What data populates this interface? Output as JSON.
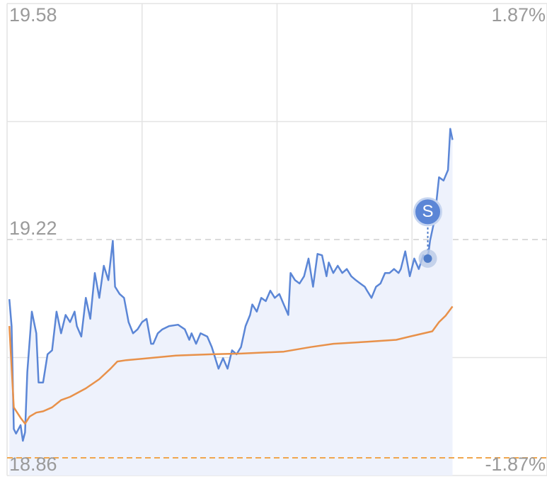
{
  "chart_data": {
    "type": "line",
    "xlim": [
      0,
      240
    ],
    "xticks": [
      0,
      60,
      120,
      180,
      240
    ],
    "ylim": [
      18.86,
      19.58
    ],
    "yticks": [
      18.86,
      19.22,
      19.58
    ],
    "y2lim": [
      -1.87,
      1.87
    ],
    "y2ticks": [
      {
        "value": -1.87,
        "label": "-1.87%"
      },
      {
        "value": 1.87,
        "label": "1.87%"
      }
    ],
    "grid": true,
    "prev_close": 19.22,
    "reference_lines": [
      {
        "value": 18.887,
        "color": "#f0a64e"
      }
    ],
    "series": [
      {
        "name": "price",
        "color": "#5b86d6",
        "fill": "#eef2fc",
        "x": [
          1,
          2,
          3,
          4,
          6,
          7,
          8,
          9,
          11,
          13,
          14,
          16,
          18,
          20,
          22,
          24,
          26,
          28,
          30,
          31,
          33,
          35,
          37,
          39,
          41,
          43,
          45,
          47,
          48,
          50,
          52,
          54,
          56,
          58,
          60,
          62,
          64,
          65,
          67,
          69,
          72,
          76,
          79,
          81,
          82,
          84,
          86,
          89,
          91,
          92,
          94,
          96,
          98,
          100,
          102,
          104,
          106,
          108,
          109,
          111,
          113,
          115,
          117,
          119,
          121,
          123,
          125,
          126,
          128,
          130,
          132,
          134,
          136,
          138,
          140,
          142,
          143,
          145,
          147,
          149,
          151,
          153,
          155,
          157,
          159,
          160,
          162,
          164,
          166,
          168,
          170,
          172,
          174,
          175,
          177,
          179,
          181,
          183,
          185,
          187,
          188,
          190,
          192,
          194,
          196,
          197,
          198
        ],
        "values": [
          19.129,
          19.088,
          18.931,
          18.924,
          18.937,
          18.913,
          18.926,
          19.018,
          19.11,
          19.077,
          19.002,
          19.002,
          19.045,
          19.051,
          19.11,
          19.077,
          19.105,
          19.094,
          19.11,
          19.088,
          19.072,
          19.131,
          19.099,
          19.169,
          19.131,
          19.18,
          19.158,
          19.218,
          19.148,
          19.137,
          19.131,
          19.094,
          19.077,
          19.083,
          19.094,
          19.099,
          19.061,
          19.061,
          19.077,
          19.083,
          19.088,
          19.09,
          19.083,
          19.067,
          19.077,
          19.061,
          19.077,
          19.072,
          19.056,
          19.045,
          19.023,
          19.039,
          19.023,
          19.051,
          19.045,
          19.056,
          19.088,
          19.105,
          19.121,
          19.11,
          19.131,
          19.126,
          19.142,
          19.131,
          19.137,
          19.121,
          19.105,
          19.169,
          19.158,
          19.153,
          19.164,
          19.191,
          19.148,
          19.198,
          19.196,
          19.164,
          19.185,
          19.169,
          19.18,
          19.169,
          19.175,
          19.164,
          19.158,
          19.153,
          19.148,
          19.142,
          19.131,
          19.148,
          19.153,
          19.169,
          19.169,
          19.175,
          19.169,
          19.175,
          19.202,
          19.164,
          19.191,
          19.175,
          19.196,
          19.191,
          19.218,
          19.25,
          19.315,
          19.31,
          19.326,
          19.389,
          19.372
        ]
      },
      {
        "name": "average",
        "color": "#e8914a",
        "x": [
          1,
          3,
          6,
          8,
          10,
          13,
          16,
          20,
          24,
          28,
          35,
          41,
          46,
          49,
          53,
          60,
          75,
          91,
          104,
          123,
          135,
          145,
          160,
          173,
          179,
          189,
          192,
          195,
          198
        ],
        "values": [
          19.088,
          18.964,
          18.948,
          18.939,
          18.95,
          18.956,
          18.958,
          18.964,
          18.975,
          18.98,
          18.993,
          19.007,
          19.023,
          19.034,
          19.036,
          19.038,
          19.043,
          19.045,
          19.046,
          19.049,
          19.056,
          19.061,
          19.064,
          19.067,
          19.072,
          19.08,
          19.094,
          19.104,
          19.118
        ]
      }
    ],
    "markers": [
      {
        "x": 187,
        "y": 19.191,
        "label": "S"
      }
    ]
  }
}
